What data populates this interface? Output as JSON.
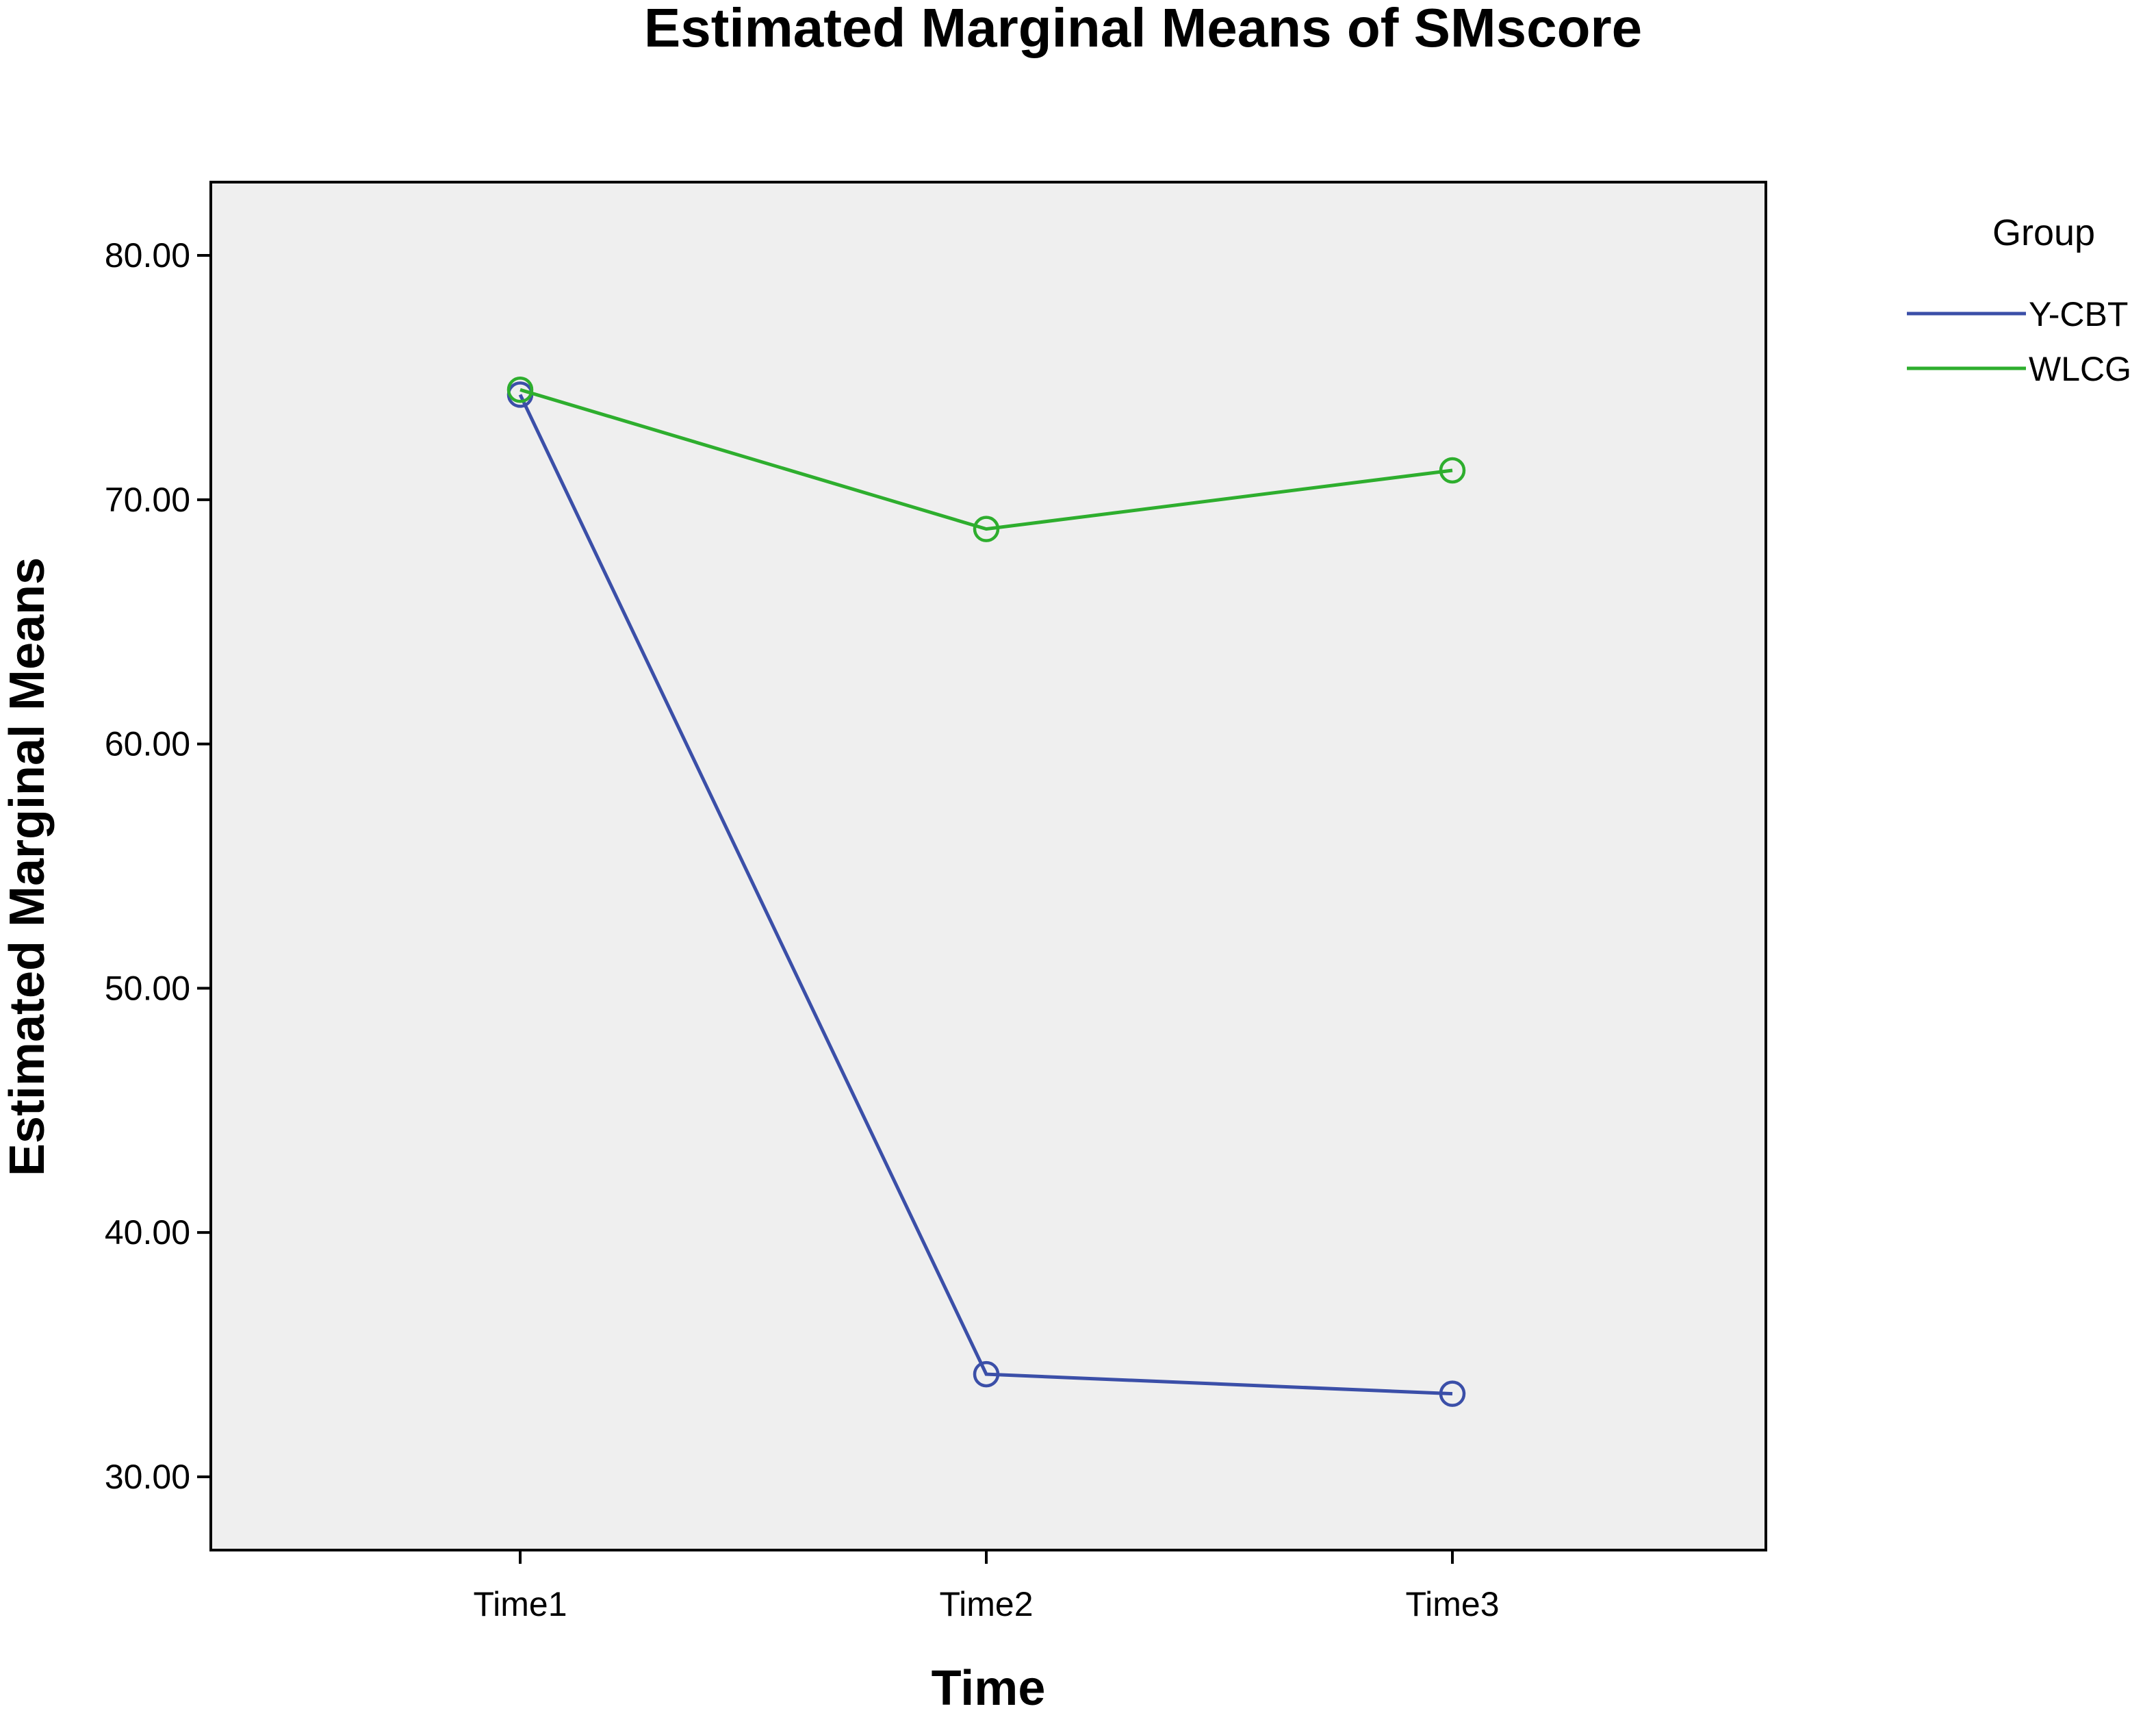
{
  "chart_data": {
    "type": "line",
    "title": "Estimated Marginal Means of SMscore",
    "xlabel": "Time",
    "ylabel": "Estimated Marginal Means",
    "categories": [
      "Time1",
      "Time2",
      "Time3"
    ],
    "ylim": [
      27,
      83
    ],
    "yticks": [
      "30.00",
      "40.00",
      "50.00",
      "60.00",
      "70.00",
      "80.00"
    ],
    "grid": false,
    "legend_title": "Group",
    "legend_position": "right",
    "plot_background": "#efefef",
    "series": [
      {
        "name": "Y-CBT",
        "color": "#3b4fa8",
        "values": [
          74.3,
          34.2,
          33.4
        ]
      },
      {
        "name": "WLCG",
        "color": "#2eae2e",
        "values": [
          74.5,
          68.8,
          71.2
        ]
      }
    ]
  }
}
